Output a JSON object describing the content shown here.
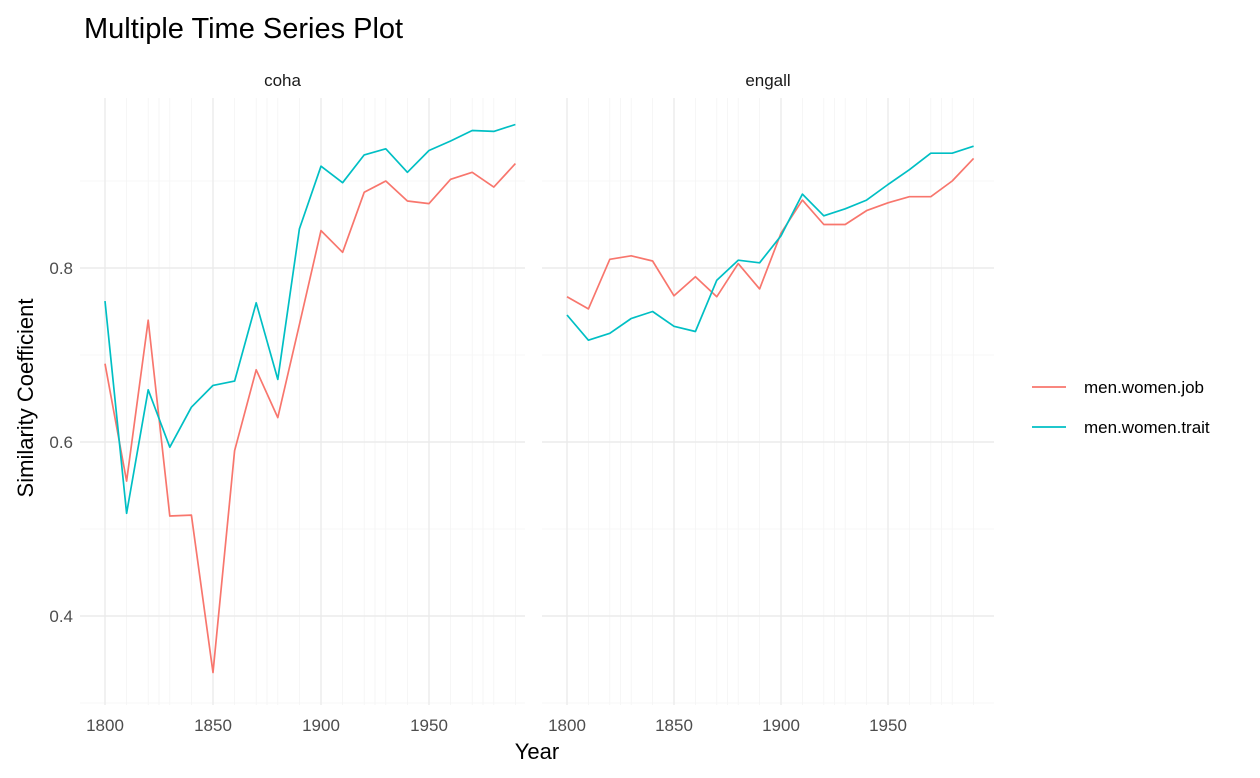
{
  "chart_data": {
    "type": "line",
    "title": "Multiple Time Series Plot",
    "xlabel": "Year",
    "ylabel": "Similarity Coefficient",
    "x_ticks": [
      1800,
      1850,
      1900,
      1950
    ],
    "y_ticks": [
      0.4,
      0.6,
      0.8
    ],
    "y_tick_labels": [
      "0.4",
      "0.6",
      "0.8"
    ],
    "xlim": [
      1800,
      1990
    ],
    "ylim": [
      0.33,
      0.965
    ],
    "grid": true,
    "legend_position": "right",
    "colors": {
      "men.women.job": "#F8766D",
      "men.women.trait": "#00BFC4"
    },
    "series_names": [
      "men.women.job",
      "men.women.trait"
    ],
    "panels": [
      {
        "name": "coha",
        "x": [
          1800,
          1810,
          1820,
          1830,
          1840,
          1850,
          1860,
          1870,
          1880,
          1890,
          1900,
          1910,
          1920,
          1930,
          1940,
          1950,
          1960,
          1970,
          1980,
          1990
        ],
        "series": [
          {
            "name": "men.women.job",
            "values": [
              0.69,
              0.555,
              0.74,
              0.515,
              0.516,
              0.335,
              0.59,
              0.683,
              0.628,
              0.735,
              0.843,
              0.818,
              0.887,
              0.9,
              0.877,
              0.874,
              0.902,
              0.91,
              0.893,
              0.92
            ]
          },
          {
            "name": "men.women.trait",
            "values": [
              0.762,
              0.518,
              0.66,
              0.594,
              0.64,
              0.665,
              0.67,
              0.76,
              0.672,
              0.845,
              0.917,
              0.898,
              0.93,
              0.937,
              0.91,
              0.935,
              0.946,
              0.958,
              0.957,
              0.965
            ]
          }
        ]
      },
      {
        "name": "engall",
        "x": [
          1800,
          1810,
          1820,
          1830,
          1840,
          1850,
          1860,
          1870,
          1880,
          1890,
          1900,
          1910,
          1920,
          1930,
          1940,
          1950,
          1960,
          1970,
          1980,
          1990
        ],
        "series": [
          {
            "name": "men.women.job",
            "values": [
              0.767,
              0.753,
              0.81,
              0.814,
              0.808,
              0.768,
              0.79,
              0.767,
              0.805,
              0.776,
              0.84,
              0.878,
              0.85,
              0.85,
              0.866,
              0.875,
              0.882,
              0.882,
              0.9,
              0.926
            ]
          },
          {
            "name": "men.women.trait",
            "values": [
              0.746,
              0.717,
              0.725,
              0.742,
              0.75,
              0.733,
              0.727,
              0.786,
              0.809,
              0.806,
              0.837,
              0.885,
              0.86,
              0.868,
              0.878,
              0.896,
              0.913,
              0.932,
              0.932,
              0.94
            ]
          }
        ]
      }
    ]
  }
}
